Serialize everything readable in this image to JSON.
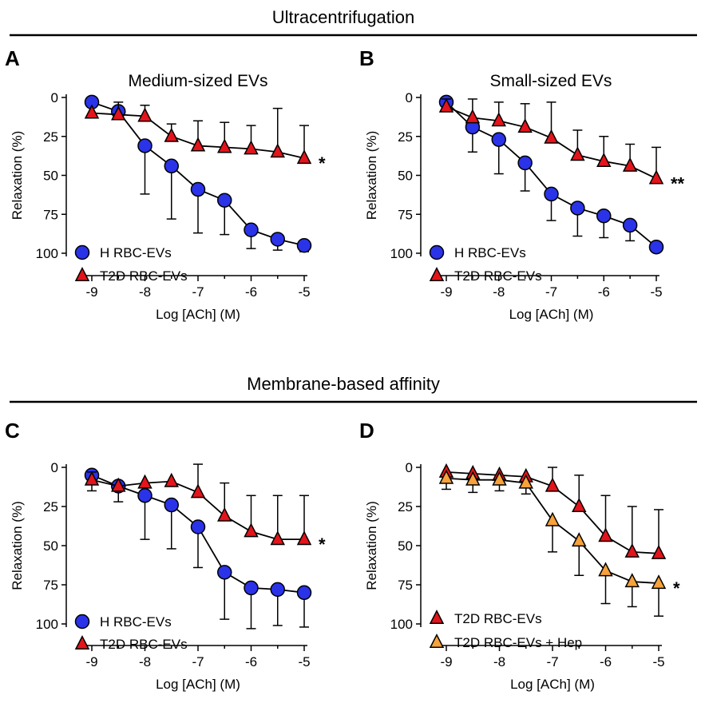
{
  "sections": [
    {
      "title": "Ultracentrifugation"
    },
    {
      "title": "Membrane-based affinity"
    }
  ],
  "colors": {
    "blue": "#2a33e8",
    "red": "#e3141b",
    "orange": "#f7a23a",
    "line": "#000000"
  },
  "chart_data": [
    {
      "panel": "A",
      "type": "line",
      "title": "Medium-sized EVs",
      "xlabel": "Log [ACh] (M)",
      "ylabel": "Relaxation (%)",
      "xlim": [
        -9,
        -5
      ],
      "ylim": [
        0,
        100
      ],
      "y_inverted": true,
      "xticks": [
        -9,
        -8,
        -7,
        -6,
        -5
      ],
      "yticks": [
        0,
        25,
        50,
        75,
        100
      ],
      "significance": "*",
      "series": [
        {
          "name": "H RBC-EVs",
          "marker": "circle",
          "color": "#2a33e8",
          "x": [
            -9,
            -8.5,
            -8,
            -7.5,
            -7,
            -6.5,
            -6,
            -5.5,
            -5
          ],
          "y": [
            3,
            9,
            31,
            44,
            59,
            66,
            85,
            91,
            95
          ],
          "err": [
            0,
            0,
            31,
            34,
            28,
            22,
            12,
            7,
            4
          ]
        },
        {
          "name": "T2D RBC-EVs",
          "marker": "triangle",
          "color": "#e3141b",
          "x": [
            -9,
            -8.5,
            -8,
            -7.5,
            -7,
            -6.5,
            -6,
            -5.5,
            -5
          ],
          "y": [
            10,
            11,
            12,
            25,
            31,
            32,
            33,
            35,
            39
          ],
          "err": [
            0,
            8,
            7,
            8,
            16,
            16,
            15,
            28,
            21
          ]
        }
      ]
    },
    {
      "panel": "B",
      "type": "line",
      "title": "Small-sized EVs",
      "xlabel": "Log [ACh] (M)",
      "ylabel": "Relaxation (%)",
      "xlim": [
        -9,
        -5
      ],
      "ylim": [
        0,
        100
      ],
      "y_inverted": true,
      "xticks": [
        -9,
        -8,
        -7,
        -6,
        -5
      ],
      "yticks": [
        0,
        25,
        50,
        75,
        100
      ],
      "significance": "**",
      "series": [
        {
          "name": "H RBC-EVs",
          "marker": "circle",
          "color": "#2a33e8",
          "x": [
            -9,
            -8.5,
            -8,
            -7.5,
            -7,
            -6.5,
            -6,
            -5.5,
            -5
          ],
          "y": [
            3,
            19,
            27,
            42,
            62,
            71,
            76,
            82,
            96
          ],
          "err": [
            0,
            16,
            22,
            18,
            17,
            18,
            14,
            10,
            0
          ]
        },
        {
          "name": "T2D RBC-EVs",
          "marker": "triangle",
          "color": "#e3141b",
          "x": [
            -9,
            -8.5,
            -8,
            -7.5,
            -7,
            -6.5,
            -6,
            -5.5,
            -5
          ],
          "y": [
            6,
            13,
            15,
            19,
            26,
            37,
            41,
            44,
            52
          ],
          "err": [
            5,
            12,
            12,
            15,
            23,
            16,
            16,
            14,
            20
          ]
        }
      ]
    },
    {
      "panel": "C",
      "type": "line",
      "title": "",
      "xlabel": "Log [ACh] (M)",
      "ylabel": "Relaxation (%)",
      "xlim": [
        -9,
        -5
      ],
      "ylim": [
        0,
        100
      ],
      "y_inverted": true,
      "xticks": [
        -9,
        -8,
        -7,
        -6,
        -5
      ],
      "yticks": [
        0,
        25,
        50,
        75,
        100
      ],
      "significance": "*",
      "series": [
        {
          "name": "H RBC-EVs",
          "marker": "circle",
          "color": "#2a33e8",
          "x": [
            -9,
            -8.5,
            -8,
            -7.5,
            -7,
            -6.5,
            -6,
            -5.5,
            -5
          ],
          "y": [
            5,
            12,
            18,
            24,
            38,
            67,
            77,
            78,
            80
          ],
          "err": [
            10,
            10,
            28,
            28,
            26,
            30,
            26,
            23,
            22
          ]
        },
        {
          "name": "T2D RBC-EVs",
          "marker": "triangle",
          "color": "#e3141b",
          "x": [
            -9,
            -8.5,
            -8,
            -7.5,
            -7,
            -6.5,
            -6,
            -5.5,
            -5
          ],
          "y": [
            8,
            12,
            10,
            9,
            16,
            31,
            41,
            46,
            46
          ],
          "err": [
            5,
            0,
            0,
            0,
            18,
            21,
            23,
            28,
            28
          ]
        }
      ]
    },
    {
      "panel": "D",
      "type": "line",
      "title": "",
      "xlabel": "Log [ACh] (M)",
      "ylabel": "Relaxation (%)",
      "xlim": [
        -9,
        -5
      ],
      "ylim": [
        0,
        100
      ],
      "y_inverted": true,
      "xticks": [
        -9,
        -8,
        -7,
        -6,
        -5
      ],
      "yticks": [
        0,
        25,
        50,
        75,
        100
      ],
      "significance": "*",
      "series": [
        {
          "name": "T2D RBC-EVs",
          "marker": "triangle",
          "color": "#e3141b",
          "x": [
            -9,
            -8.5,
            -8,
            -7.5,
            -7,
            -6.5,
            -6,
            -5.5,
            -5
          ],
          "y": [
            3,
            4,
            5,
            6,
            12,
            25,
            44,
            54,
            55
          ],
          "err": [
            0,
            0,
            0,
            0,
            12,
            20,
            26,
            29,
            28
          ]
        },
        {
          "name": "T2D RBC-EVs + Hep",
          "marker": "triangle",
          "color": "#f7a23a",
          "x": [
            -9,
            -8.5,
            -8,
            -7.5,
            -7,
            -6.5,
            -6,
            -5.5,
            -5
          ],
          "y": [
            7,
            8,
            8,
            10,
            34,
            47,
            66,
            73,
            74
          ],
          "err": [
            7,
            8,
            7,
            7,
            20,
            22,
            21,
            16,
            21
          ]
        }
      ]
    }
  ]
}
